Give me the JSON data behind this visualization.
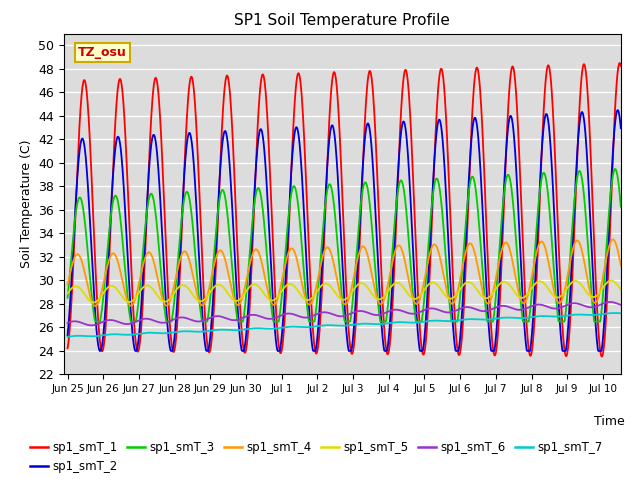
{
  "title": "SP1 Soil Temperature Profile",
  "xlabel": "Time",
  "ylabel": "Soil Temperature (C)",
  "ylim": [
    22,
    51
  ],
  "yticks": [
    22,
    24,
    26,
    28,
    30,
    32,
    34,
    36,
    38,
    40,
    42,
    44,
    46,
    48,
    50
  ],
  "series_colors": {
    "sp1_smT_1": "#ff0000",
    "sp1_smT_2": "#0000dd",
    "sp1_smT_3": "#00cc00",
    "sp1_smT_4": "#ff9900",
    "sp1_smT_5": "#dddd00",
    "sp1_smT_6": "#9933cc",
    "sp1_smT_7": "#00cccc"
  },
  "tz_label": "TZ_osu",
  "tz_box_facecolor": "#ffffcc",
  "tz_box_edgecolor": "#ccaa00",
  "tz_text_color": "#cc0000",
  "background_color": "#dcdcdc",
  "tick_positions": [
    0,
    1,
    2,
    3,
    4,
    5,
    6,
    7,
    8,
    9,
    10,
    11,
    12,
    13,
    14,
    15
  ],
  "tick_labels": [
    "Jun 25",
    "Jun 26",
    "Jun 27",
    "Jun 28",
    "Jun 29",
    "Jun 30",
    "Jul 1",
    "Jul 2",
    "Jul 3",
    "Jul 4",
    "Jul 5",
    "Jul 6",
    "Jul 7",
    "Jul 8",
    "Jul 9",
    "Jul 10"
  ]
}
